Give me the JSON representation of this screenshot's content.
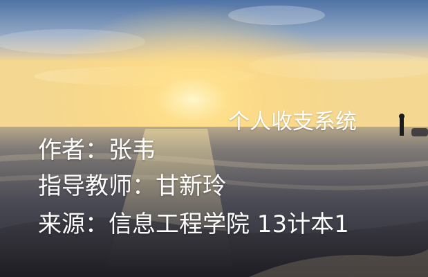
{
  "slide": {
    "title": "个人收支系统",
    "author_line": "作者：张韦",
    "advisor_line": "指导教师：甘新玲",
    "source_line": "来源：信息工程学院 13计本1"
  },
  "colors": {
    "text": "#ffffff",
    "sky_top": "#5a7fb0",
    "horizon_glow": "#f7d27a",
    "sea": "#2f2f3a"
  },
  "icons": [
    "sunset-beach-photo"
  ]
}
